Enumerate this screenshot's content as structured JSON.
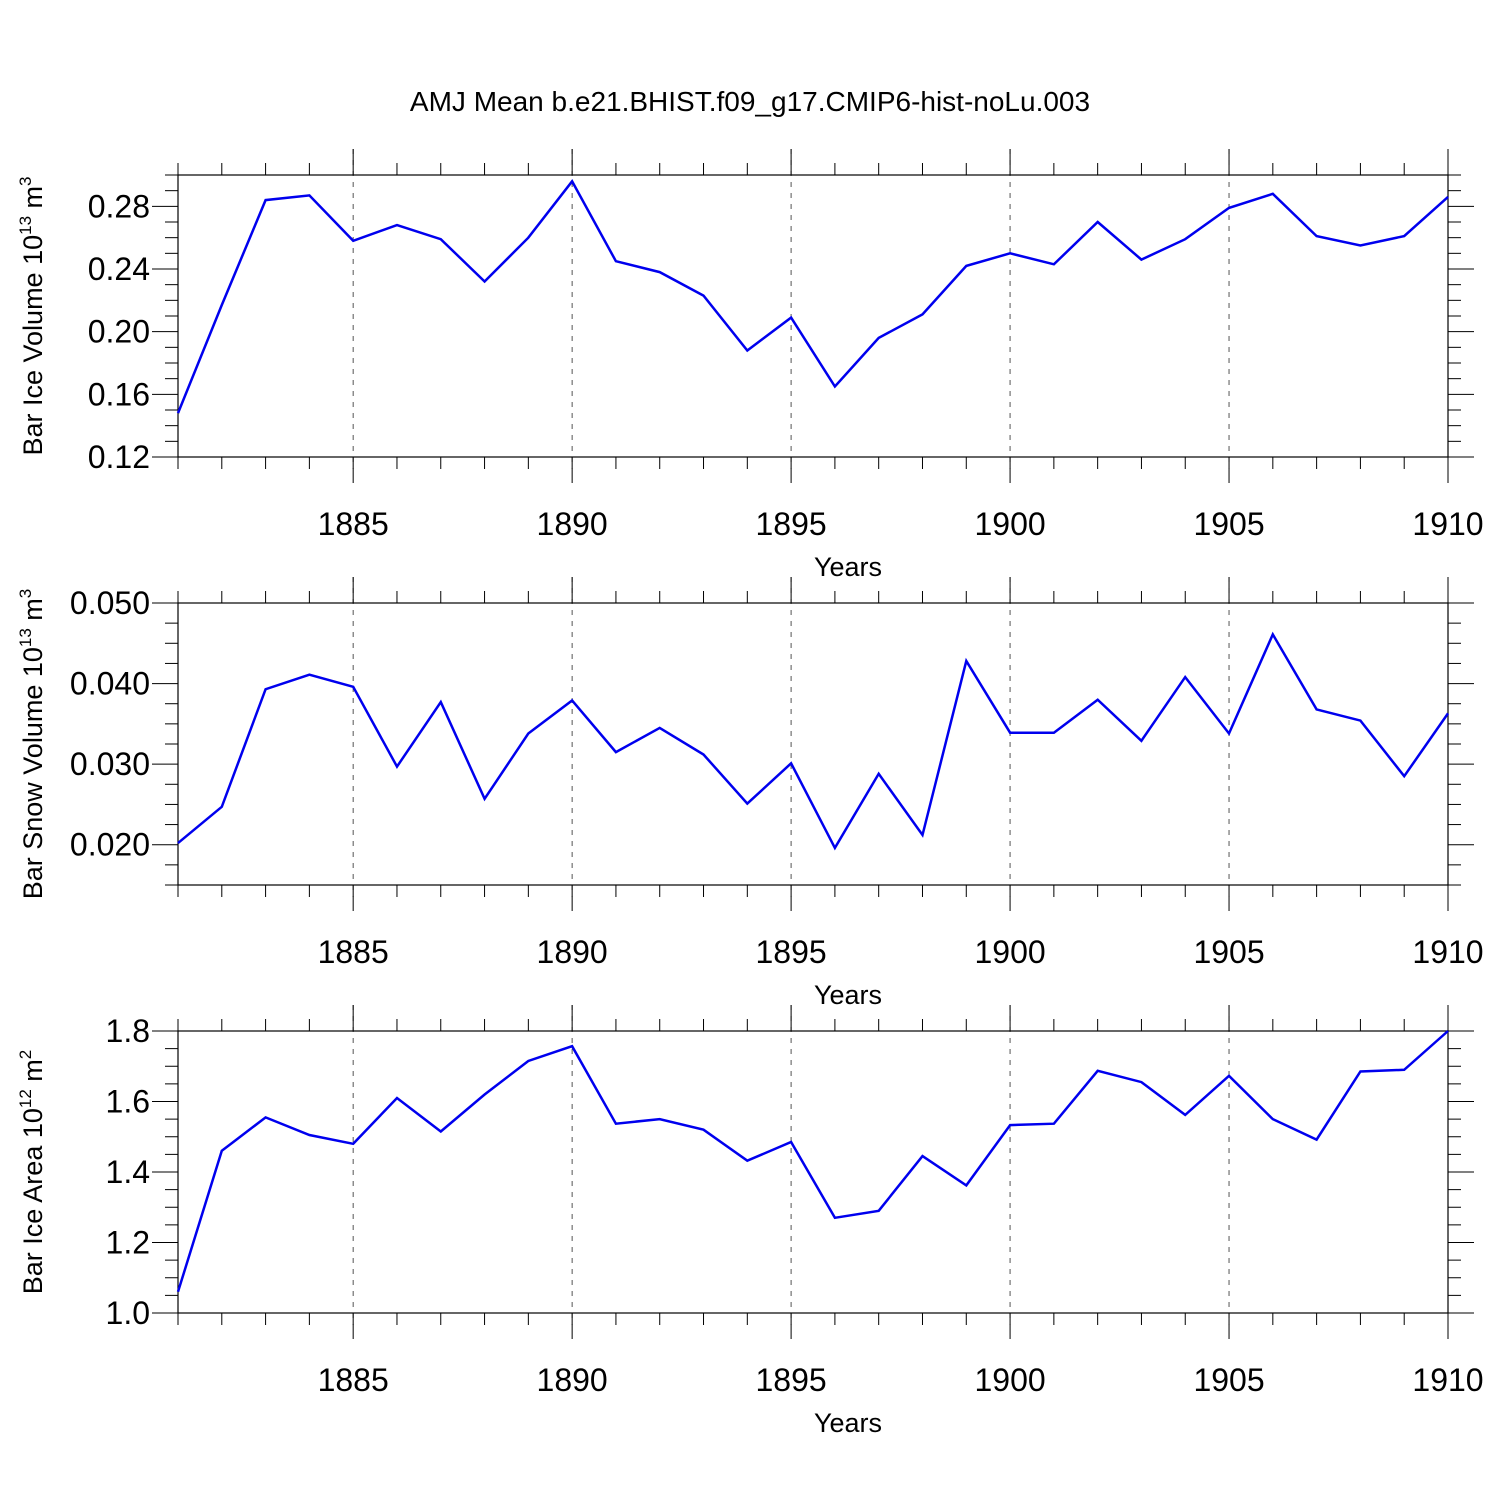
{
  "title": "AMJ Mean b.e21.BHIST.f09_g17.CMIP6-hist-noLu.003",
  "chart_data": [
    {
      "type": "line",
      "name": "ice-volume",
      "ylabel_main": "Bar Ice Volume 10",
      "ylabel_sup": "13",
      "ylabel_unit": " m",
      "ylabel_unit_sup": "3",
      "xlabel": "Years",
      "xlim": [
        1881,
        1910
      ],
      "ylim": [
        0.12,
        0.3
      ],
      "yticks": [
        0.12,
        0.16,
        0.2,
        0.24,
        0.28
      ],
      "ytick_labels": [
        "0.12",
        "0.16",
        "0.20",
        "0.24",
        "0.28"
      ],
      "xticks": [
        1885,
        1890,
        1895,
        1900,
        1905,
        1910
      ],
      "xtick_labels": [
        "1885",
        "1890",
        "1895",
        "1900",
        "1905",
        "1910"
      ],
      "line_color": "#0000ee",
      "x": [
        1881,
        1882,
        1883,
        1884,
        1885,
        1886,
        1887,
        1888,
        1889,
        1890,
        1891,
        1892,
        1893,
        1894,
        1895,
        1896,
        1897,
        1898,
        1899,
        1900,
        1901,
        1902,
        1903,
        1904,
        1905,
        1906,
        1907,
        1908,
        1909,
        1910
      ],
      "values": [
        0.148,
        0.217,
        0.284,
        0.287,
        0.258,
        0.268,
        0.259,
        0.232,
        0.26,
        0.296,
        0.245,
        0.238,
        0.223,
        0.188,
        0.209,
        0.165,
        0.196,
        0.211,
        0.242,
        0.25,
        0.243,
        0.27,
        0.246,
        0.259,
        0.279,
        0.288,
        0.261,
        0.255,
        0.261,
        0.286
      ]
    },
    {
      "type": "line",
      "name": "snow-volume",
      "ylabel_main": "Bar Snow Volume 10",
      "ylabel_sup": "13",
      "ylabel_unit": " m",
      "ylabel_unit_sup": "3",
      "xlabel": "Years",
      "xlim": [
        1881,
        1910
      ],
      "ylim": [
        0.015,
        0.05
      ],
      "yticks": [
        0.02,
        0.03,
        0.04,
        0.05
      ],
      "ytick_labels": [
        "0.020",
        "0.030",
        "0.040",
        "0.050"
      ],
      "xticks": [
        1885,
        1890,
        1895,
        1900,
        1905,
        1910
      ],
      "xtick_labels": [
        "1885",
        "1890",
        "1895",
        "1900",
        "1905",
        "1910"
      ],
      "line_color": "#0000ee",
      "x": [
        1881,
        1882,
        1883,
        1884,
        1885,
        1886,
        1887,
        1888,
        1889,
        1890,
        1891,
        1892,
        1893,
        1894,
        1895,
        1896,
        1897,
        1898,
        1899,
        1900,
        1901,
        1902,
        1903,
        1904,
        1905,
        1906,
        1907,
        1908,
        1909,
        1910
      ],
      "values": [
        0.0202,
        0.0247,
        0.0393,
        0.0411,
        0.0396,
        0.0297,
        0.0377,
        0.0257,
        0.0338,
        0.0379,
        0.0315,
        0.0345,
        0.0312,
        0.0251,
        0.0301,
        0.0196,
        0.0288,
        0.0212,
        0.0428,
        0.0339,
        0.0339,
        0.038,
        0.0329,
        0.0408,
        0.0338,
        0.0461,
        0.0368,
        0.0354,
        0.0285,
        0.0363
      ]
    },
    {
      "type": "line",
      "name": "ice-area",
      "ylabel_main": "Bar Ice Area 10",
      "ylabel_sup": "12",
      "ylabel_unit": " m",
      "ylabel_unit_sup": "2",
      "xlabel": "Years",
      "xlim": [
        1881,
        1910
      ],
      "ylim": [
        1.0,
        1.8
      ],
      "yticks": [
        1.0,
        1.2,
        1.4,
        1.6,
        1.8
      ],
      "ytick_labels": [
        "1.0",
        "1.2",
        "1.4",
        "1.6",
        "1.8"
      ],
      "xticks": [
        1885,
        1890,
        1895,
        1900,
        1905,
        1910
      ],
      "xtick_labels": [
        "1885",
        "1890",
        "1895",
        "1900",
        "1905",
        "1910"
      ],
      "line_color": "#0000ee",
      "x": [
        1881,
        1882,
        1883,
        1884,
        1885,
        1886,
        1887,
        1888,
        1889,
        1890,
        1891,
        1892,
        1893,
        1894,
        1895,
        1896,
        1897,
        1898,
        1899,
        1900,
        1901,
        1902,
        1903,
        1904,
        1905,
        1906,
        1907,
        1908,
        1909,
        1910
      ],
      "values": [
        1.06,
        1.46,
        1.555,
        1.505,
        1.48,
        1.61,
        1.515,
        1.62,
        1.715,
        1.757,
        1.537,
        1.55,
        1.52,
        1.432,
        1.485,
        1.27,
        1.29,
        1.445,
        1.362,
        1.533,
        1.537,
        1.687,
        1.655,
        1.562,
        1.673,
        1.55,
        1.492,
        1.685,
        1.69,
        1.8
      ]
    }
  ]
}
